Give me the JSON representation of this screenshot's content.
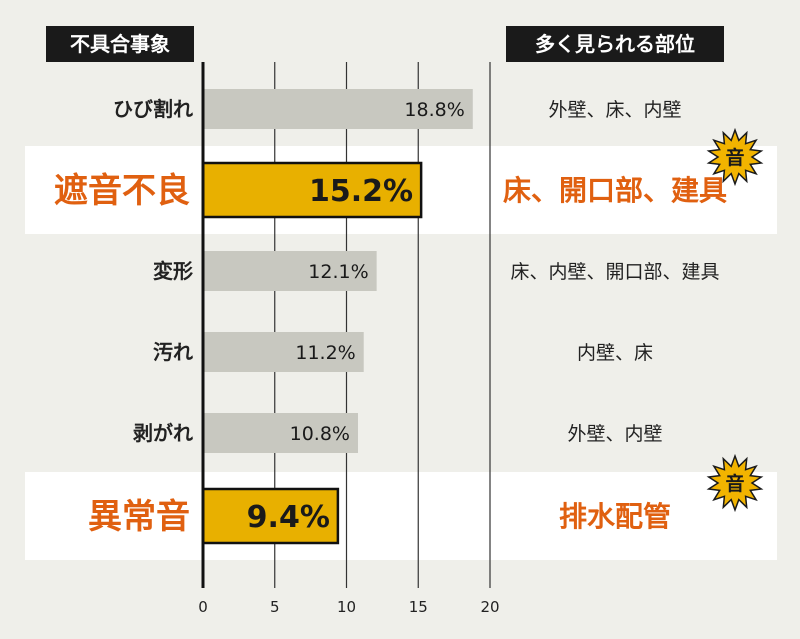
{
  "chart_data": {
    "type": "bar",
    "orientation": "horizontal",
    "left_header": "不具合事象",
    "right_header": "多く見られる部位",
    "categories": [
      "ひび割れ",
      "遮音不良",
      "変形",
      "汚れ",
      "剥がれ",
      "異常音"
    ],
    "values": [
      18.8,
      15.2,
      12.1,
      11.2,
      10.8,
      9.4
    ],
    "value_labels": [
      "18.8%",
      "15.2%",
      "12.1%",
      "11.2%",
      "10.8%",
      "9.4%"
    ],
    "locations": [
      "外壁、床、内壁",
      "床、開口部、建具",
      "床、内壁、開口部、建具",
      "内壁、床",
      "外壁、内壁",
      "排水配管"
    ],
    "highlighted": [
      false,
      true,
      false,
      false,
      false,
      true
    ],
    "badge_label": "音",
    "x_ticks": [
      0,
      5,
      10,
      15,
      20
    ],
    "xlim": [
      0,
      20
    ],
    "grid": true,
    "colors": {
      "bar_normal": "#c8c8c0",
      "bar_highlight": "#e8b000",
      "label_highlight": "#e06010",
      "badge": "#f2b400",
      "band_highlight": "#ffffff",
      "background": "#efefea"
    }
  }
}
